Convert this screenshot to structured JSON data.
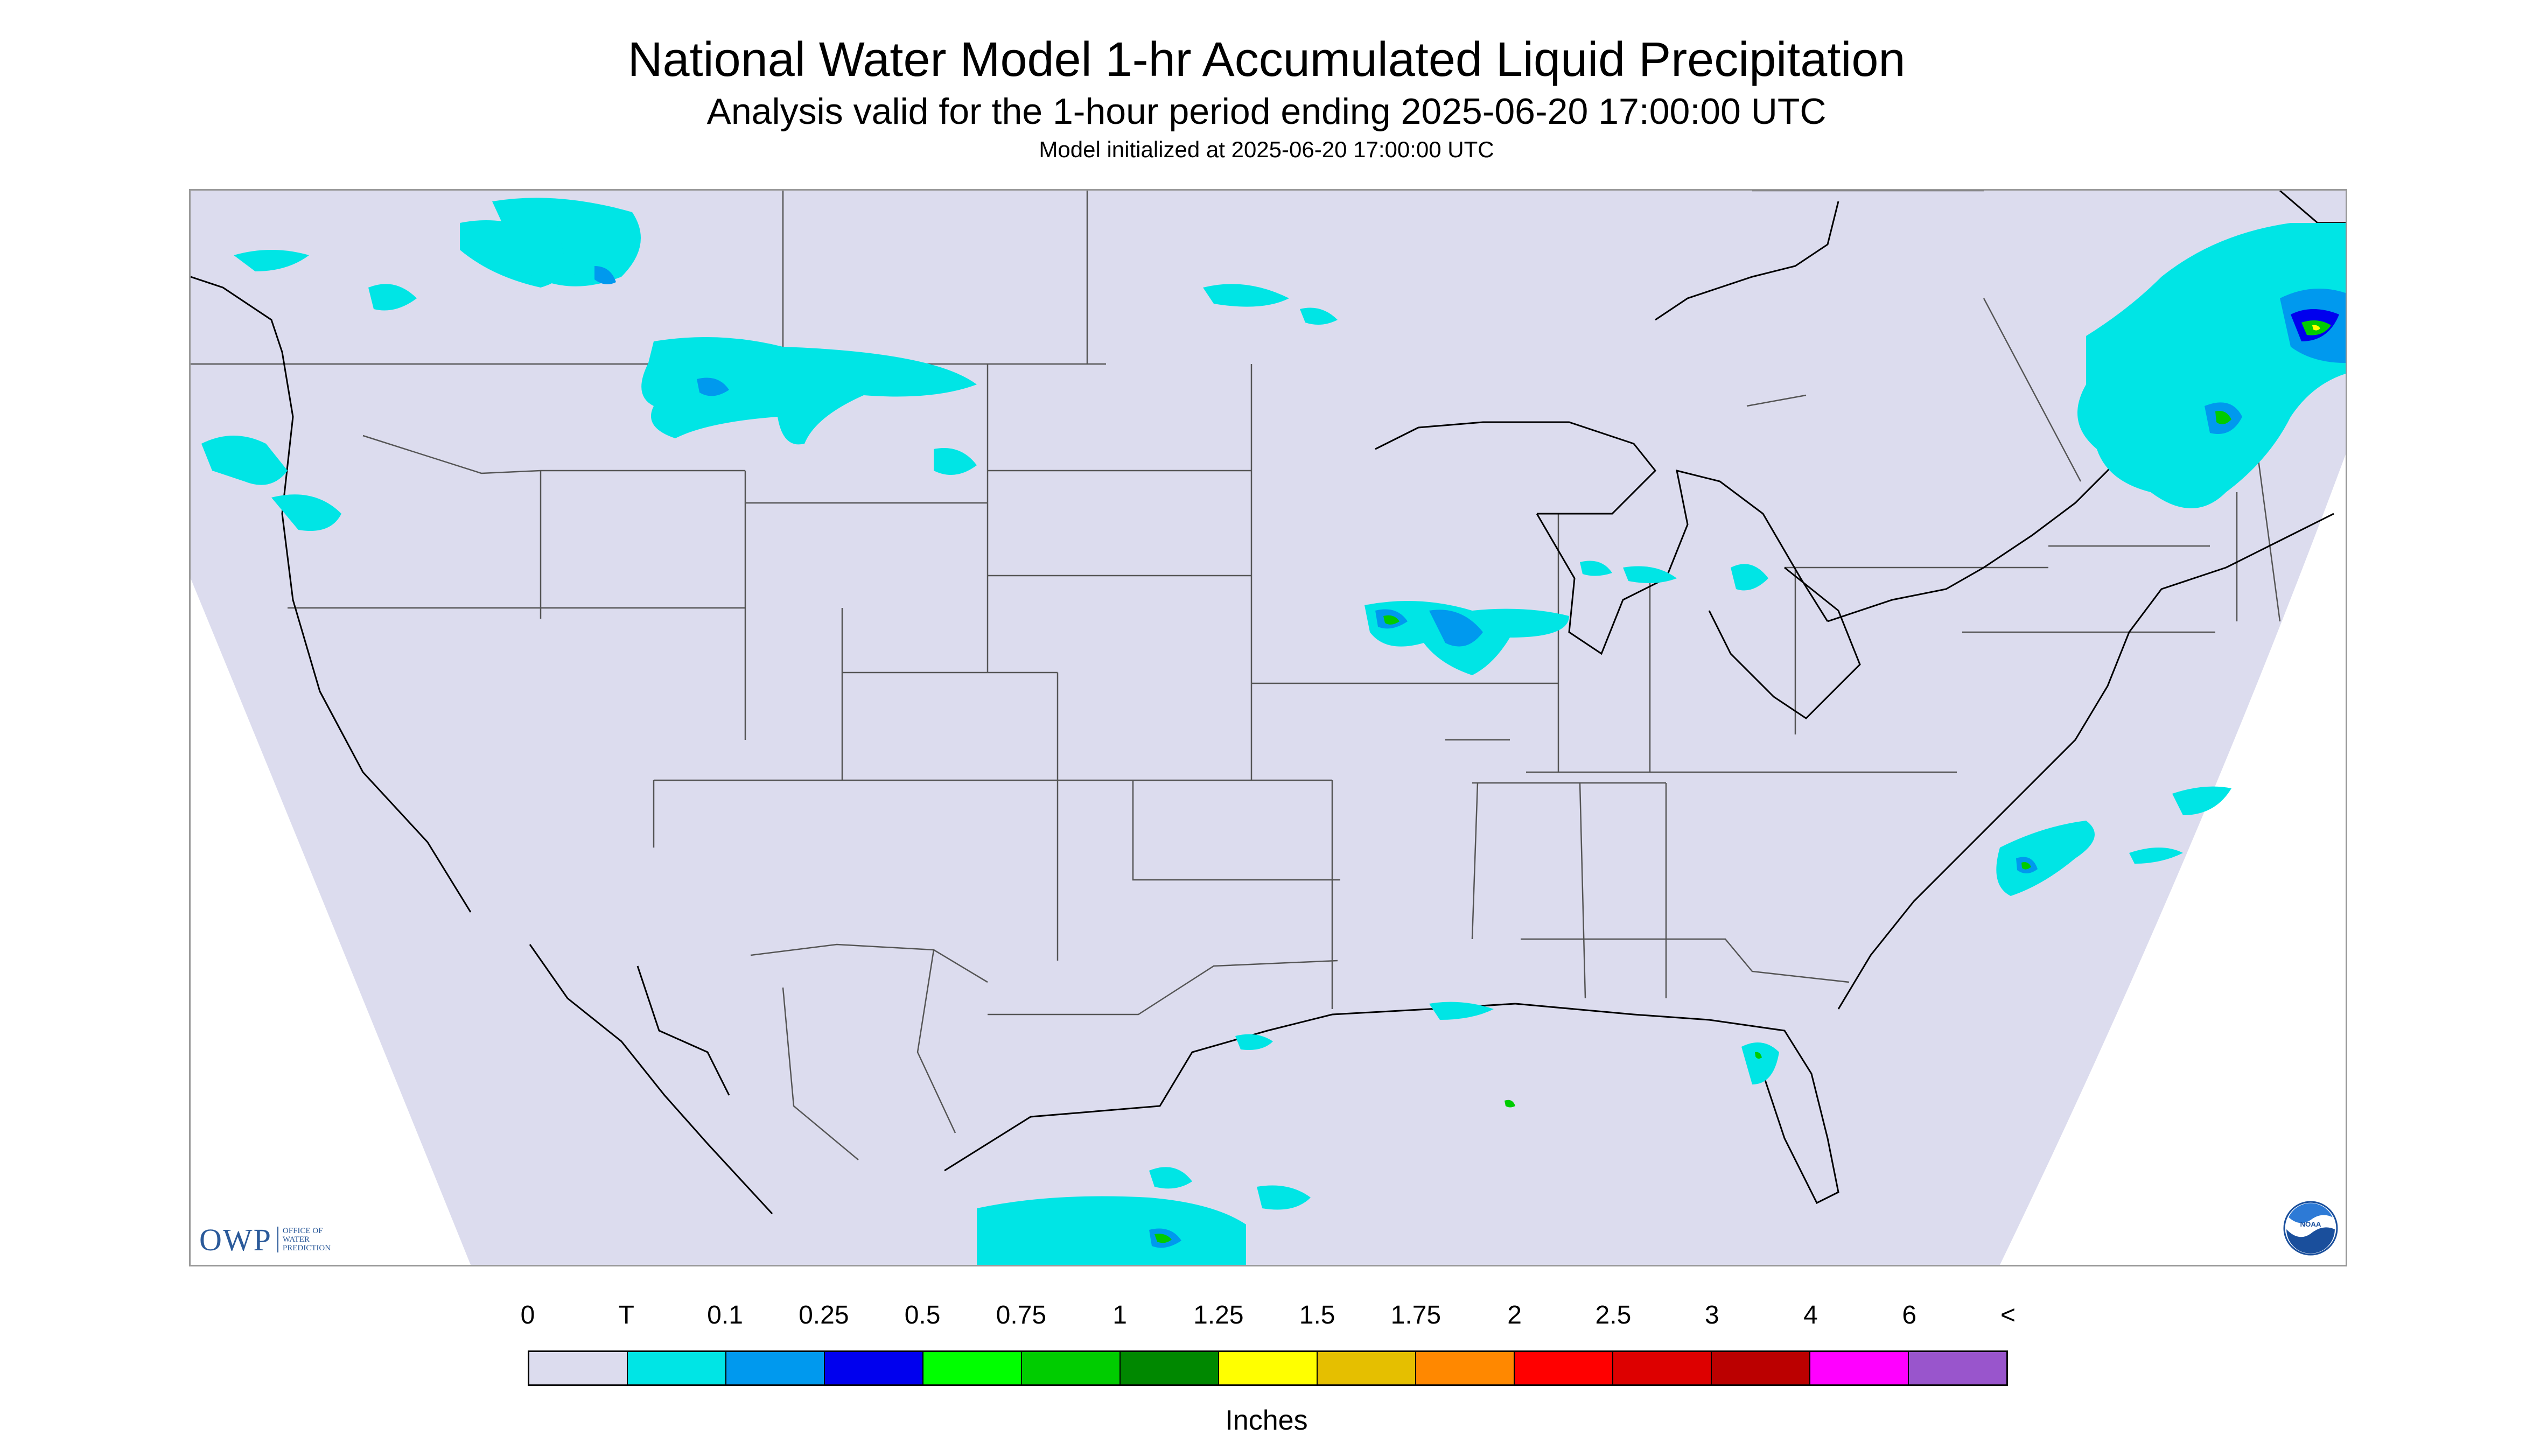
{
  "title": "National Water Model 1-hr Accumulated Liquid Precipitation",
  "subtitle": "Analysis valid for the 1-hour period ending 2025-06-20 17:00:00 UTC",
  "init_line": "Model initialized at 2025-06-20 17:00:00 UTC",
  "logos": {
    "owp_text": "OWP",
    "owp_sub": [
      "Office of",
      "Water",
      "Prediction"
    ],
    "noaa_text": "NOAA"
  },
  "legend": {
    "labels": [
      "0",
      "T",
      "0.1",
      "0.25",
      "0.5",
      "0.75",
      "1",
      "1.25",
      "1.5",
      "1.75",
      "2",
      "2.5",
      "3",
      "4",
      "6",
      "<"
    ],
    "colors": [
      "#dcdcee",
      "#00e5e5",
      "#0099ee",
      "#0000ee",
      "#00ff00",
      "#00cc00",
      "#008800",
      "#ffff00",
      "#e5bf00",
      "#ff8800",
      "#ff0000",
      "#dd0000",
      "#bb0000",
      "#ff00ff",
      "#9955cc"
    ],
    "units": "Inches"
  },
  "map": {
    "background_color": "#dcdcee",
    "outside_color": "#ffffff",
    "boundary_color": "#555555",
    "coast_color": "#000000"
  }
}
